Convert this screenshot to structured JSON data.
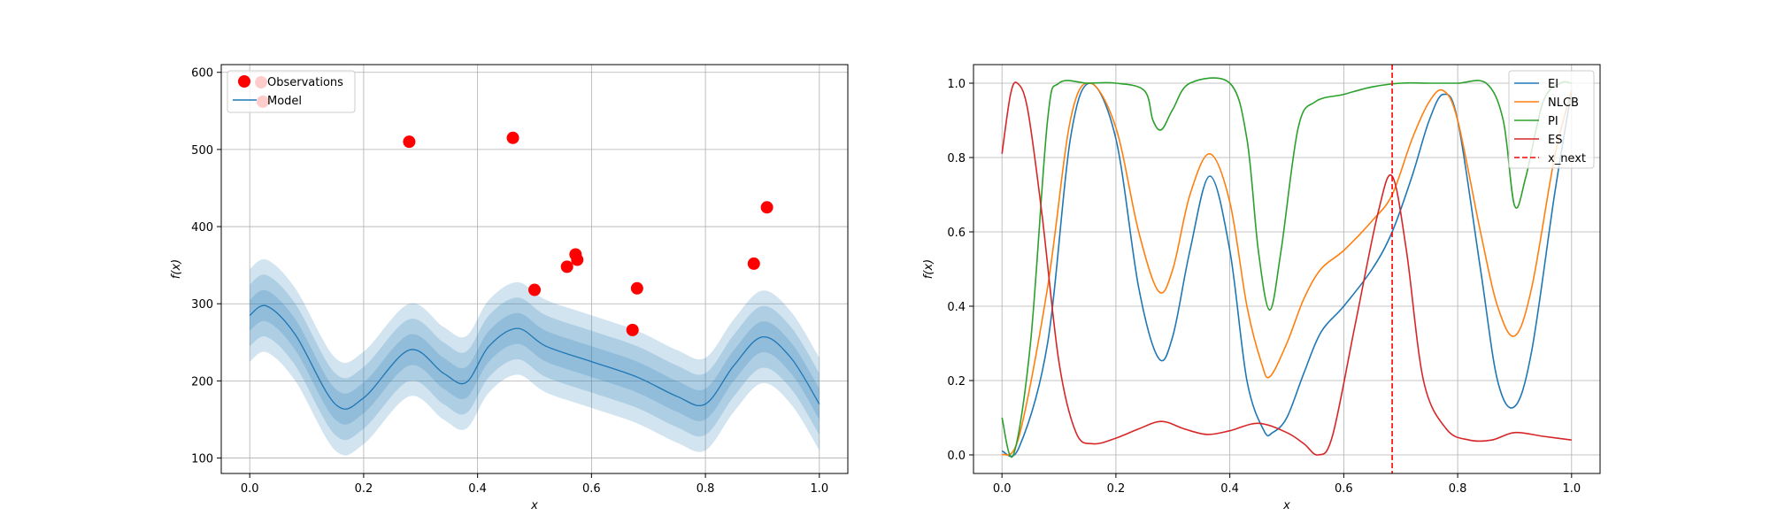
{
  "chart_data": [
    {
      "type": "scatter",
      "xlabel": "x",
      "ylabel": "f(x)",
      "xlim": [
        -0.05,
        1.05
      ],
      "ylim": [
        80,
        610
      ],
      "xticks": [
        "0.0",
        "0.2",
        "0.4",
        "0.6",
        "0.8",
        "1.0"
      ],
      "xtick_values": [
        0.0,
        0.2,
        0.4,
        0.6,
        0.8,
        1.0
      ],
      "yticks": [
        "100",
        "200",
        "300",
        "400",
        "500",
        "600"
      ],
      "ytick_values": [
        100,
        200,
        300,
        400,
        500,
        600
      ],
      "grid": true,
      "legend_position": "top-left",
      "legend": [
        "Observations",
        "Model"
      ],
      "colors": {
        "observations": "#ff0000",
        "model": "#1f77b4"
      },
      "observations": {
        "name": "Observations",
        "x": [
          0.02,
          0.023,
          0.28,
          0.462,
          0.5,
          0.557,
          0.572,
          0.575,
          0.672,
          0.68,
          0.885,
          0.908
        ],
        "y": [
          587,
          562,
          510,
          515,
          318,
          348,
          364,
          357,
          266,
          320,
          352,
          425
        ]
      },
      "model": {
        "name": "Model",
        "x": [
          0.0,
          0.03,
          0.08,
          0.15,
          0.2,
          0.28,
          0.34,
          0.38,
          0.42,
          0.47,
          0.52,
          0.6,
          0.68,
          0.75,
          0.8,
          0.85,
          0.9,
          0.95,
          1.0
        ],
        "y": [
          285,
          297,
          260,
          170,
          178,
          240,
          210,
          198,
          245,
          268,
          245,
          225,
          205,
          180,
          170,
          220,
          257,
          230,
          170
        ],
        "bands": [
          [
            -20,
            20
          ],
          [
            -40,
            40
          ],
          [
            -60,
            60
          ]
        ]
      }
    },
    {
      "type": "line",
      "xlabel": "x",
      "ylabel": "f(x)",
      "xlim": [
        -0.05,
        1.05
      ],
      "ylim": [
        -0.05,
        1.05
      ],
      "xticks": [
        "0.0",
        "0.2",
        "0.4",
        "0.6",
        "0.8",
        "1.0"
      ],
      "xtick_values": [
        0.0,
        0.2,
        0.4,
        0.6,
        0.8,
        1.0
      ],
      "yticks": [
        "0.0",
        "0.2",
        "0.4",
        "0.6",
        "0.8",
        "1.0"
      ],
      "ytick_values": [
        0.0,
        0.2,
        0.4,
        0.6,
        0.8,
        1.0
      ],
      "grid": true,
      "legend_position": "top-right",
      "legend": [
        "EI",
        "NLCB",
        "PI",
        "ES",
        "x_next"
      ],
      "x_next": 0.685,
      "series": [
        {
          "name": "EI",
          "color": "#1f77b4",
          "x": [
            0.0,
            0.03,
            0.08,
            0.12,
            0.155,
            0.2,
            0.24,
            0.275,
            0.3,
            0.33,
            0.365,
            0.4,
            0.43,
            0.46,
            0.475,
            0.5,
            0.53,
            0.56,
            0.6,
            0.65,
            0.685,
            0.72,
            0.75,
            0.775,
            0.8,
            0.84,
            0.87,
            0.9,
            0.93,
            0.97,
            1.0
          ],
          "y": [
            0.01,
            0.02,
            0.3,
            0.85,
            1.0,
            0.85,
            0.45,
            0.26,
            0.32,
            0.55,
            0.75,
            0.55,
            0.2,
            0.065,
            0.06,
            0.1,
            0.22,
            0.33,
            0.4,
            0.5,
            0.6,
            0.75,
            0.9,
            0.97,
            0.9,
            0.5,
            0.2,
            0.13,
            0.28,
            0.7,
            0.98
          ]
        },
        {
          "name": "NLCB",
          "color": "#ff7f0e",
          "x": [
            0.0,
            0.03,
            0.08,
            0.12,
            0.155,
            0.2,
            0.24,
            0.275,
            0.3,
            0.33,
            0.365,
            0.4,
            0.43,
            0.455,
            0.47,
            0.5,
            0.53,
            0.56,
            0.6,
            0.65,
            0.685,
            0.72,
            0.75,
            0.775,
            0.8,
            0.84,
            0.87,
            0.9,
            0.93,
            0.97,
            1.0
          ],
          "y": [
            0.0,
            0.05,
            0.45,
            0.9,
            1.0,
            0.88,
            0.6,
            0.44,
            0.5,
            0.7,
            0.81,
            0.68,
            0.4,
            0.25,
            0.21,
            0.3,
            0.42,
            0.5,
            0.55,
            0.63,
            0.7,
            0.85,
            0.95,
            0.98,
            0.9,
            0.6,
            0.4,
            0.32,
            0.45,
            0.8,
            0.98
          ]
        },
        {
          "name": "PI",
          "color": "#2ca02c",
          "x": [
            0.0,
            0.02,
            0.05,
            0.08,
            0.1,
            0.15,
            0.2,
            0.25,
            0.265,
            0.28,
            0.3,
            0.33,
            0.4,
            0.43,
            0.45,
            0.47,
            0.49,
            0.52,
            0.55,
            0.6,
            0.65,
            0.7,
            0.75,
            0.8,
            0.85,
            0.88,
            0.9,
            0.92,
            0.95,
            0.98,
            1.0
          ],
          "y": [
            0.1,
            0.0,
            0.3,
            0.9,
            1.0,
            1.0,
            1.0,
            0.98,
            0.9,
            0.875,
            0.93,
            1.0,
            1.0,
            0.85,
            0.55,
            0.39,
            0.55,
            0.88,
            0.95,
            0.97,
            0.99,
            1.0,
            1.0,
            1.0,
            1.0,
            0.9,
            0.67,
            0.75,
            0.95,
            1.0,
            1.0
          ]
        },
        {
          "name": "ES",
          "color": "#d62728",
          "x": [
            0.0,
            0.015,
            0.027,
            0.045,
            0.07,
            0.1,
            0.13,
            0.16,
            0.2,
            0.24,
            0.28,
            0.32,
            0.36,
            0.4,
            0.45,
            0.5,
            0.53,
            0.555,
            0.58,
            0.62,
            0.66,
            0.685,
            0.71,
            0.74,
            0.78,
            0.82,
            0.86,
            0.9,
            0.95,
            1.0
          ],
          "y": [
            0.81,
            0.97,
            1.0,
            0.93,
            0.65,
            0.25,
            0.06,
            0.03,
            0.045,
            0.07,
            0.09,
            0.07,
            0.055,
            0.065,
            0.085,
            0.06,
            0.03,
            0.0,
            0.05,
            0.35,
            0.65,
            0.75,
            0.55,
            0.2,
            0.07,
            0.04,
            0.04,
            0.06,
            0.05,
            0.04
          ]
        }
      ]
    }
  ]
}
